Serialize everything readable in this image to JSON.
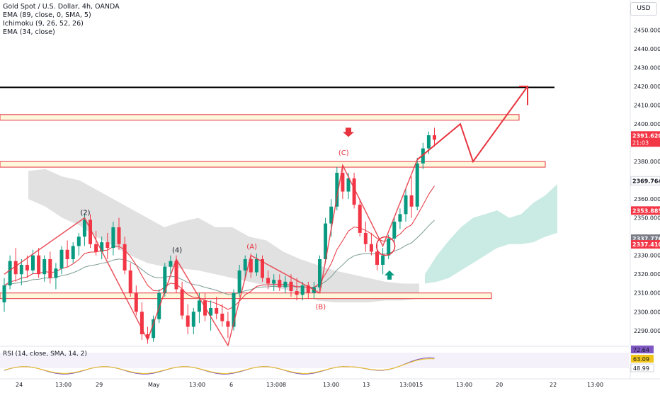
{
  "header": {
    "symbol_line": "Gold Spot / U.S. Dollar, 4h, OANDA",
    "indicators": [
      "EMA (89, close, 0, SMA, 5)",
      "Ichimoku (9, 26, 52, 26)",
      "EMA (34, close)"
    ],
    "currency": "USD"
  },
  "rsi": {
    "legend": "RSI (14, close, SMA, 14, 2)",
    "values": {
      "rsi": "72.64",
      "ma": "63.09",
      "other": "48.99"
    },
    "colors": {
      "rsi": "#7e57c2",
      "ma": "#f0c419"
    }
  },
  "colors": {
    "up": "#089981",
    "down": "#f23645",
    "wave": "#e8343f",
    "zone_fill": "#fdf8dc",
    "zone_border": "#e8343f",
    "cloud": "#c9c9c9",
    "cloud_green": "#b7e4d9",
    "ema34": "#e8343f",
    "ema89": "#7d9c96",
    "resistance": "#000000"
  },
  "chart_data": {
    "type": "candlestick",
    "symbol": "Gold Spot / U.S. Dollar",
    "timeframe": "4h",
    "ylim": [
      2282,
      2463
    ],
    "y_ticks": [
      "2290.000",
      "2300.000",
      "2310.000",
      "2320.000",
      "2330.000",
      "2340.000",
      "2350.000",
      "2360.000",
      "2370.000",
      "2380.000",
      "2390.000",
      "2400.000",
      "2410.000",
      "2420.000",
      "2430.000",
      "2440.000",
      "2450.000"
    ],
    "x_ticks": [
      "24",
      "13:00",
      "29",
      "May",
      "13:00",
      "6",
      "13:00",
      "8",
      "13:00",
      "13",
      "13:00",
      "15",
      "13:00",
      "20",
      "22",
      "13:00"
    ],
    "price_labels": [
      {
        "value": 2391.62,
        "text": "2391.620",
        "sub": "21:03",
        "color": "#f23645"
      },
      {
        "value": 2369.764,
        "text": "2369.764",
        "color": "#ffffff"
      },
      {
        "value": 2353.885,
        "text": "2353.885",
        "color": "#f23645"
      },
      {
        "value": 2337.776,
        "text": "2337.776",
        "color": "#787b86"
      },
      {
        "value": 2337.41,
        "text": "2337.410",
        "color": "#f23645"
      }
    ],
    "wave_labels": [
      "(2)",
      "(4)",
      "(A)",
      "(B)",
      "(C)"
    ],
    "resistance_level": 2419.5,
    "zones": [
      {
        "low": 2402,
        "high": 2405
      },
      {
        "low": 2377,
        "high": 2380
      },
      {
        "low": 2307,
        "high": 2310
      }
    ],
    "candles": [
      {
        "o": 2305,
        "h": 2318,
        "l": 2300,
        "c": 2314
      },
      {
        "o": 2314,
        "h": 2330,
        "l": 2312,
        "c": 2327
      },
      {
        "o": 2327,
        "h": 2334,
        "l": 2316,
        "c": 2320
      },
      {
        "o": 2320,
        "h": 2328,
        "l": 2314,
        "c": 2325
      },
      {
        "o": 2325,
        "h": 2330,
        "l": 2318,
        "c": 2322
      },
      {
        "o": 2322,
        "h": 2333,
        "l": 2320,
        "c": 2330
      },
      {
        "o": 2330,
        "h": 2334,
        "l": 2318,
        "c": 2320
      },
      {
        "o": 2320,
        "h": 2330,
        "l": 2316,
        "c": 2328
      },
      {
        "o": 2328,
        "h": 2332,
        "l": 2315,
        "c": 2318
      },
      {
        "o": 2318,
        "h": 2326,
        "l": 2312,
        "c": 2323
      },
      {
        "o": 2323,
        "h": 2335,
        "l": 2320,
        "c": 2333
      },
      {
        "o": 2333,
        "h": 2338,
        "l": 2324,
        "c": 2328
      },
      {
        "o": 2328,
        "h": 2337,
        "l": 2326,
        "c": 2335
      },
      {
        "o": 2335,
        "h": 2342,
        "l": 2330,
        "c": 2340
      },
      {
        "o": 2340,
        "h": 2352,
        "l": 2335,
        "c": 2349
      },
      {
        "o": 2349,
        "h": 2352,
        "l": 2334,
        "c": 2336
      },
      {
        "o": 2336,
        "h": 2343,
        "l": 2330,
        "c": 2332
      },
      {
        "o": 2332,
        "h": 2340,
        "l": 2328,
        "c": 2337
      },
      {
        "o": 2337,
        "h": 2342,
        "l": 2328,
        "c": 2334
      },
      {
        "o": 2334,
        "h": 2348,
        "l": 2330,
        "c": 2345
      },
      {
        "o": 2345,
        "h": 2350,
        "l": 2333,
        "c": 2336
      },
      {
        "o": 2336,
        "h": 2340,
        "l": 2320,
        "c": 2322
      },
      {
        "o": 2322,
        "h": 2326,
        "l": 2308,
        "c": 2310
      },
      {
        "o": 2310,
        "h": 2314,
        "l": 2298,
        "c": 2300
      },
      {
        "o": 2300,
        "h": 2305,
        "l": 2285,
        "c": 2288
      },
      {
        "o": 2288,
        "h": 2292,
        "l": 2283,
        "c": 2286
      },
      {
        "o": 2286,
        "h": 2298,
        "l": 2284,
        "c": 2296
      },
      {
        "o": 2296,
        "h": 2312,
        "l": 2294,
        "c": 2310
      },
      {
        "o": 2310,
        "h": 2326,
        "l": 2308,
        "c": 2324
      },
      {
        "o": 2324,
        "h": 2330,
        "l": 2320,
        "c": 2327
      },
      {
        "o": 2327,
        "h": 2330,
        "l": 2310,
        "c": 2312
      },
      {
        "o": 2312,
        "h": 2316,
        "l": 2296,
        "c": 2298
      },
      {
        "o": 2298,
        "h": 2304,
        "l": 2288,
        "c": 2292
      },
      {
        "o": 2292,
        "h": 2302,
        "l": 2288,
        "c": 2300
      },
      {
        "o": 2300,
        "h": 2310,
        "l": 2294,
        "c": 2306
      },
      {
        "o": 2306,
        "h": 2310,
        "l": 2295,
        "c": 2298
      },
      {
        "o": 2298,
        "h": 2306,
        "l": 2290,
        "c": 2302
      },
      {
        "o": 2302,
        "h": 2308,
        "l": 2296,
        "c": 2299
      },
      {
        "o": 2299,
        "h": 2304,
        "l": 2292,
        "c": 2295
      },
      {
        "o": 2295,
        "h": 2300,
        "l": 2286,
        "c": 2292
      },
      {
        "o": 2292,
        "h": 2312,
        "l": 2290,
        "c": 2310
      },
      {
        "o": 2310,
        "h": 2325,
        "l": 2308,
        "c": 2322
      },
      {
        "o": 2322,
        "h": 2330,
        "l": 2318,
        "c": 2328
      },
      {
        "o": 2328,
        "h": 2331,
        "l": 2318,
        "c": 2321
      },
      {
        "o": 2321,
        "h": 2331,
        "l": 2319,
        "c": 2328
      },
      {
        "o": 2328,
        "h": 2330,
        "l": 2316,
        "c": 2318
      },
      {
        "o": 2318,
        "h": 2322,
        "l": 2312,
        "c": 2315
      },
      {
        "o": 2315,
        "h": 2320,
        "l": 2311,
        "c": 2317
      },
      {
        "o": 2317,
        "h": 2320,
        "l": 2311,
        "c": 2313
      },
      {
        "o": 2313,
        "h": 2319,
        "l": 2310,
        "c": 2316
      },
      {
        "o": 2316,
        "h": 2320,
        "l": 2308,
        "c": 2311
      },
      {
        "o": 2311,
        "h": 2318,
        "l": 2306,
        "c": 2309
      },
      {
        "o": 2309,
        "h": 2316,
        "l": 2306,
        "c": 2314
      },
      {
        "o": 2314,
        "h": 2316,
        "l": 2307,
        "c": 2310
      },
      {
        "o": 2310,
        "h": 2316,
        "l": 2307,
        "c": 2313
      },
      {
        "o": 2313,
        "h": 2330,
        "l": 2311,
        "c": 2328
      },
      {
        "o": 2328,
        "h": 2350,
        "l": 2326,
        "c": 2347
      },
      {
        "o": 2347,
        "h": 2360,
        "l": 2340,
        "c": 2356
      },
      {
        "o": 2356,
        "h": 2377,
        "l": 2354,
        "c": 2374
      },
      {
        "o": 2374,
        "h": 2378,
        "l": 2360,
        "c": 2364
      },
      {
        "o": 2364,
        "h": 2374,
        "l": 2360,
        "c": 2371
      },
      {
        "o": 2371,
        "h": 2374,
        "l": 2355,
        "c": 2357
      },
      {
        "o": 2357,
        "h": 2360,
        "l": 2340,
        "c": 2342
      },
      {
        "o": 2342,
        "h": 2348,
        "l": 2332,
        "c": 2336
      },
      {
        "o": 2336,
        "h": 2342,
        "l": 2330,
        "c": 2332
      },
      {
        "o": 2332,
        "h": 2336,
        "l": 2322,
        "c": 2325
      },
      {
        "o": 2325,
        "h": 2334,
        "l": 2320,
        "c": 2330
      },
      {
        "o": 2330,
        "h": 2341,
        "l": 2328,
        "c": 2339
      },
      {
        "o": 2339,
        "h": 2350,
        "l": 2336,
        "c": 2348
      },
      {
        "o": 2348,
        "h": 2355,
        "l": 2344,
        "c": 2352
      },
      {
        "o": 2352,
        "h": 2365,
        "l": 2348,
        "c": 2362
      },
      {
        "o": 2362,
        "h": 2372,
        "l": 2350,
        "c": 2356
      },
      {
        "o": 2356,
        "h": 2382,
        "l": 2354,
        "c": 2379
      },
      {
        "o": 2379,
        "h": 2390,
        "l": 2376,
        "c": 2387
      },
      {
        "o": 2387,
        "h": 2396,
        "l": 2384,
        "c": 2394
      },
      {
        "o": 2394,
        "h": 2398,
        "l": 2388,
        "c": 2391.62
      }
    ]
  }
}
